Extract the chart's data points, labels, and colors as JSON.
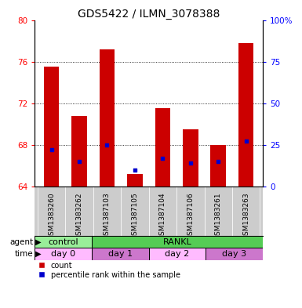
{
  "title": "GDS5422 / ILMN_3078388",
  "samples": [
    "GSM1383260",
    "GSM1383262",
    "GSM1387103",
    "GSM1387105",
    "GSM1387104",
    "GSM1387106",
    "GSM1383261",
    "GSM1383263"
  ],
  "count_values": [
    75.5,
    70.8,
    77.2,
    65.2,
    71.5,
    69.5,
    68.0,
    77.8
  ],
  "count_base": 64.0,
  "percentile_values": [
    22.0,
    15.0,
    25.0,
    10.0,
    17.0,
    14.0,
    15.0,
    27.0
  ],
  "ylim_left": [
    64,
    80
  ],
  "ylim_right": [
    0,
    100
  ],
  "yticks_left": [
    64,
    68,
    72,
    76,
    80
  ],
  "yticks_right": [
    0,
    25,
    50,
    75,
    100
  ],
  "ytick_labels_right": [
    "0",
    "25",
    "50",
    "75",
    "100%"
  ],
  "bar_color": "#cc0000",
  "percentile_color": "#0000cc",
  "agent_labels": [
    {
      "label": "control",
      "span": [
        0,
        2
      ],
      "color": "#99ee99"
    },
    {
      "label": "RANKL",
      "span": [
        2,
        8
      ],
      "color": "#55cc55"
    }
  ],
  "time_labels": [
    {
      "label": "day 0",
      "span": [
        0,
        2
      ],
      "color": "#ffbbff"
    },
    {
      "label": "day 1",
      "span": [
        2,
        4
      ],
      "color": "#cc77cc"
    },
    {
      "label": "day 2",
      "span": [
        4,
        6
      ],
      "color": "#ffbbff"
    },
    {
      "label": "day 3",
      "span": [
        6,
        8
      ],
      "color": "#cc77cc"
    }
  ],
  "bar_width": 0.55,
  "bg_color": "#ffffff",
  "sample_bg_color": "#cccccc",
  "title_fontsize": 10,
  "tick_fontsize": 7.5,
  "sample_label_fontsize": 6.5,
  "row_label_fontsize": 7.5,
  "row_text_fontsize": 8
}
